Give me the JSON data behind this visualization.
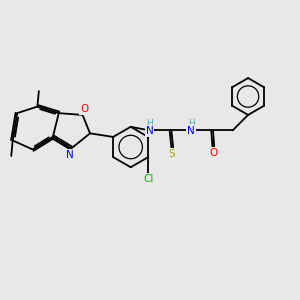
{
  "background_color": "#e8e8e8",
  "bond_color": "#000000",
  "atom_colors": {
    "N": "#0000FF",
    "O": "#FF0000",
    "S": "#AAAA00",
    "Cl": "#00BB00",
    "C": "#000000",
    "H": "#4AADAD"
  },
  "figsize": [
    3.0,
    3.0
  ],
  "dpi": 100
}
